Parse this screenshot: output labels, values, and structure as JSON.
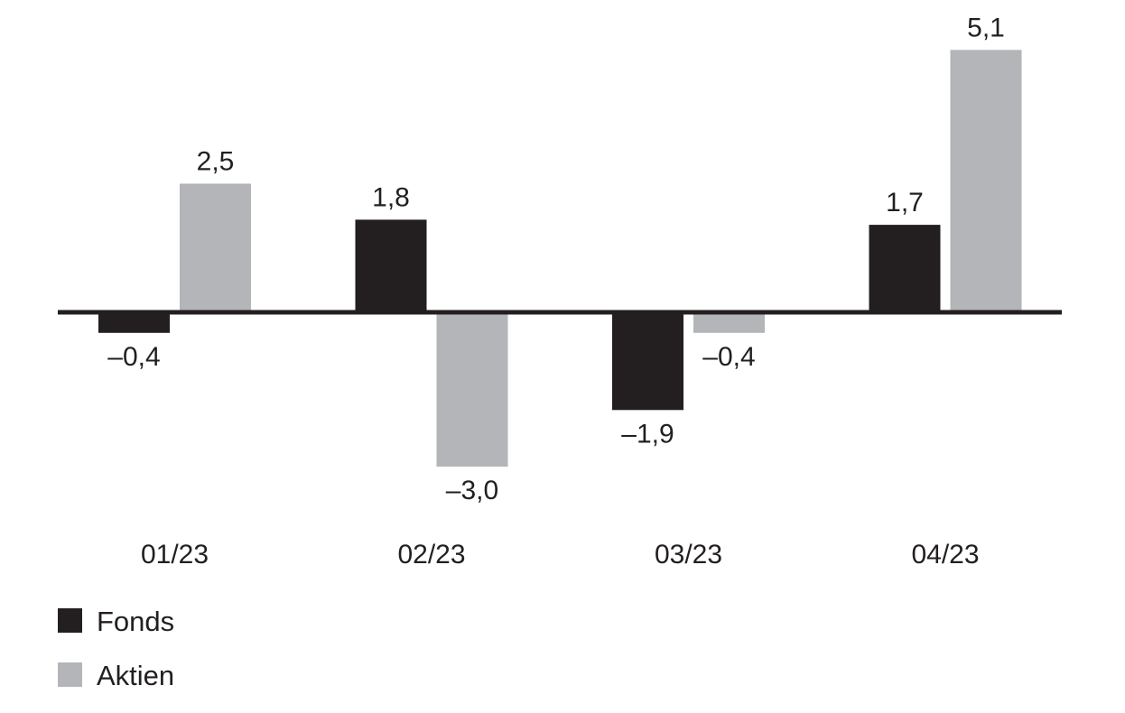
{
  "chart_data": {
    "type": "bar",
    "categories": [
      "01/23",
      "02/23",
      "03/23",
      "04/23"
    ],
    "series": [
      {
        "name": "Fonds",
        "color": "#231f20",
        "values": [
          -0.4,
          1.8,
          -1.9,
          1.7
        ],
        "labels": [
          "–0,4",
          "1,8",
          "–1,9",
          "1,7"
        ]
      },
      {
        "name": "Aktien",
        "color": "#b4b5b8",
        "values": [
          2.5,
          -3.0,
          -0.4,
          5.1
        ],
        "labels": [
          "2,5",
          "–3,0",
          "–0,4",
          "5,1"
        ]
      }
    ],
    "ylim": [
      -3.0,
      5.1
    ],
    "zero_line": true,
    "grid": false,
    "legend": "bottom-left"
  }
}
